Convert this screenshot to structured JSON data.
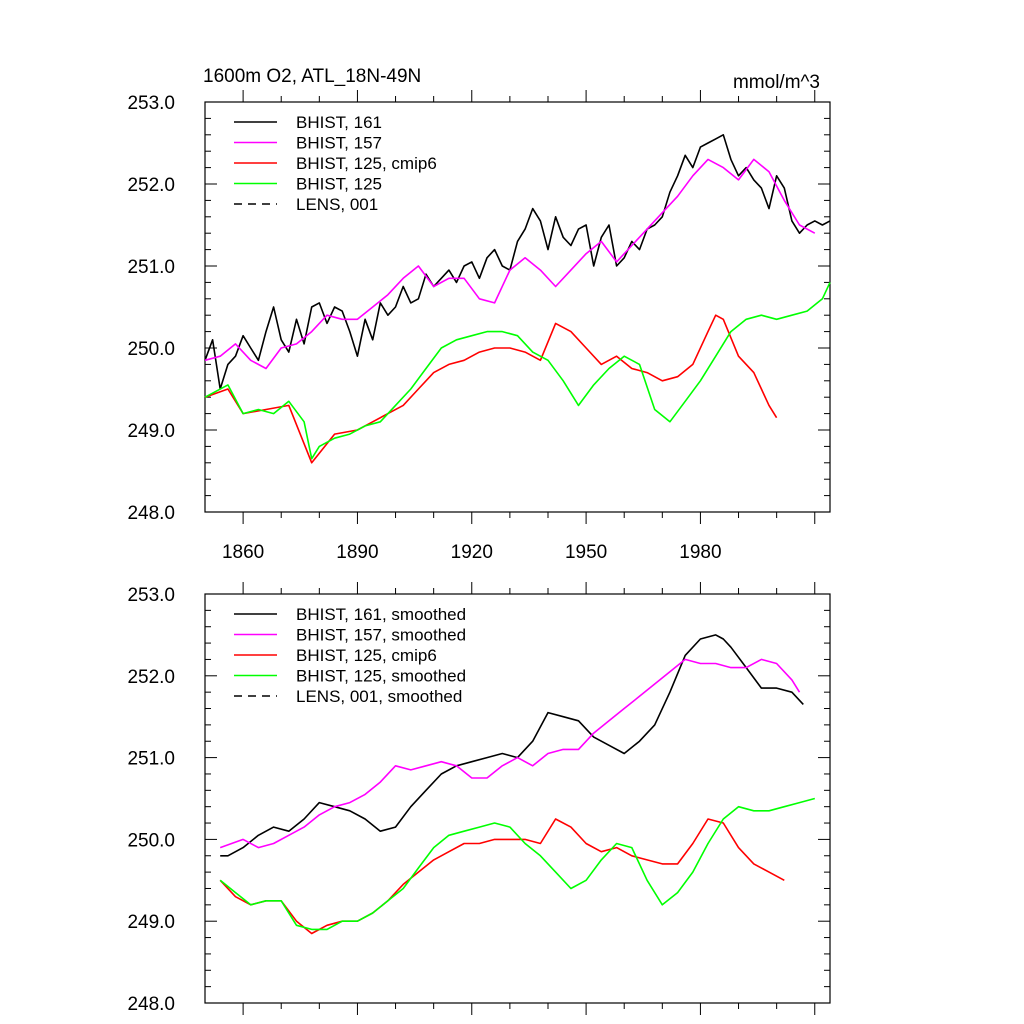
{
  "chart_data": [
    {
      "type": "line",
      "title": "1600m O2, ATL_18N-49N",
      "units": "mmol/m^3",
      "xlabel": "",
      "ylabel": "",
      "xlim": [
        1850,
        2014
      ],
      "ylim": [
        248.0,
        253.0
      ],
      "x_ticks": [
        "1860",
        "1890",
        "1920",
        "1950",
        "1980"
      ],
      "y_ticks": [
        "253.0",
        "252.0",
        "251.0",
        "250.0",
        "249.0",
        "248.0"
      ],
      "legend_position": "top-left",
      "series": [
        {
          "name": "BHIST, 161",
          "color": "#000000",
          "dash": "solid",
          "x": [
            1850,
            1852,
            1854,
            1856,
            1858,
            1860,
            1862,
            1864,
            1866,
            1868,
            1870,
            1872,
            1874,
            1876,
            1878,
            1880,
            1882,
            1884,
            1886,
            1888,
            1890,
            1892,
            1894,
            1896,
            1898,
            1900,
            1902,
            1904,
            1906,
            1908,
            1910,
            1912,
            1914,
            1916,
            1918,
            1920,
            1922,
            1924,
            1926,
            1928,
            1930,
            1932,
            1934,
            1936,
            1938,
            1940,
            1942,
            1944,
            1946,
            1948,
            1950,
            1952,
            1954,
            1956,
            1958,
            1960,
            1962,
            1964,
            1966,
            1968,
            1970,
            1972,
            1974,
            1976,
            1978,
            1980,
            1982,
            1984,
            1986,
            1988,
            1990,
            1992,
            1994,
            1996,
            1998,
            2000,
            2002,
            2004,
            2006,
            2008,
            2010,
            2012,
            2014
          ],
          "y": [
            249.85,
            250.1,
            249.5,
            249.8,
            249.9,
            250.15,
            250.0,
            249.85,
            250.2,
            250.5,
            250.1,
            249.95,
            250.35,
            250.05,
            250.5,
            250.55,
            250.3,
            250.5,
            250.45,
            250.2,
            249.9,
            250.35,
            250.1,
            250.55,
            250.4,
            250.5,
            250.75,
            250.55,
            250.6,
            250.9,
            250.75,
            250.85,
            250.95,
            250.8,
            251.0,
            251.05,
            250.85,
            251.1,
            251.2,
            251.0,
            250.95,
            251.3,
            251.45,
            251.7,
            251.55,
            251.2,
            251.6,
            251.35,
            251.25,
            251.45,
            251.5,
            251.0,
            251.35,
            251.5,
            251.0,
            251.1,
            251.3,
            251.2,
            251.45,
            251.5,
            251.6,
            251.9,
            252.1,
            252.35,
            252.2,
            252.45,
            252.5,
            252.55,
            252.6,
            252.3,
            252.1,
            252.2,
            252.05,
            251.95,
            251.7,
            252.1,
            251.95,
            251.55,
            251.4,
            251.5,
            251.55,
            251.5,
            251.55
          ]
        },
        {
          "name": "BHIST, 157",
          "color": "#ff00ff",
          "dash": "solid",
          "x": [
            1850,
            1854,
            1858,
            1862,
            1866,
            1870,
            1874,
            1878,
            1882,
            1886,
            1890,
            1894,
            1898,
            1902,
            1906,
            1910,
            1914,
            1918,
            1922,
            1926,
            1930,
            1934,
            1938,
            1942,
            1946,
            1950,
            1954,
            1958,
            1962,
            1966,
            1970,
            1974,
            1978,
            1982,
            1986,
            1990,
            1994,
            1998,
            2002,
            2006,
            2010
          ],
          "y": [
            249.85,
            249.9,
            250.05,
            249.85,
            249.75,
            250.0,
            250.05,
            250.2,
            250.4,
            250.35,
            250.35,
            250.5,
            250.65,
            250.85,
            251.0,
            250.75,
            250.85,
            250.85,
            250.6,
            250.55,
            250.95,
            251.1,
            250.95,
            250.75,
            250.95,
            251.15,
            251.3,
            251.05,
            251.25,
            251.45,
            251.65,
            251.85,
            252.1,
            252.3,
            252.2,
            252.05,
            252.3,
            252.15,
            251.8,
            251.5,
            251.4
          ]
        },
        {
          "name": "BHIST, 125, cmip6",
          "color": "#ff0000",
          "dash": "solid",
          "x": [
            1850,
            1856,
            1860,
            1866,
            1872,
            1878,
            1884,
            1890,
            1894,
            1898,
            1902,
            1906,
            1910,
            1914,
            1918,
            1922,
            1926,
            1930,
            1934,
            1938,
            1942,
            1946,
            1950,
            1954,
            1958,
            1962,
            1966,
            1970,
            1974,
            1978,
            1982,
            1984,
            1986,
            1990,
            1994,
            1998,
            2000
          ],
          "y": [
            249.4,
            249.5,
            249.2,
            249.25,
            249.3,
            248.6,
            248.95,
            249.0,
            249.1,
            249.2,
            249.3,
            249.5,
            249.7,
            249.8,
            249.85,
            249.95,
            250.0,
            250.0,
            249.95,
            249.85,
            250.3,
            250.2,
            250.0,
            249.8,
            249.9,
            249.75,
            249.7,
            249.6,
            249.65,
            249.8,
            250.2,
            250.4,
            250.35,
            249.9,
            249.7,
            249.3,
            249.15
          ]
        },
        {
          "name": "BHIST, 125",
          "color": "#00ff00",
          "dash": "solid",
          "x": [
            1850,
            1856,
            1860,
            1864,
            1868,
            1872,
            1876,
            1878,
            1880,
            1884,
            1888,
            1892,
            1896,
            1900,
            1904,
            1908,
            1912,
            1916,
            1920,
            1924,
            1928,
            1932,
            1936,
            1940,
            1944,
            1948,
            1952,
            1956,
            1960,
            1964,
            1968,
            1972,
            1976,
            1980,
            1984,
            1988,
            1992,
            1996,
            2000,
            2004,
            2008,
            2012,
            2014
          ],
          "y": [
            249.4,
            249.55,
            249.2,
            249.25,
            249.2,
            249.35,
            249.1,
            248.65,
            248.8,
            248.9,
            248.95,
            249.05,
            249.1,
            249.3,
            249.5,
            249.75,
            250.0,
            250.1,
            250.15,
            250.2,
            250.2,
            250.15,
            249.95,
            249.85,
            249.6,
            249.3,
            249.55,
            249.75,
            249.9,
            249.8,
            249.25,
            249.1,
            249.35,
            249.6,
            249.9,
            250.2,
            250.35,
            250.4,
            250.35,
            250.4,
            250.45,
            250.6,
            250.8
          ]
        },
        {
          "name": "LENS, 001",
          "color": "#000000",
          "dash": "dashed",
          "x": [],
          "y": []
        }
      ]
    },
    {
      "type": "line",
      "title": "",
      "xlabel": "",
      "ylabel": "",
      "xlim": [
        1850,
        2014
      ],
      "ylim": [
        248.0,
        253.0
      ],
      "y_ticks": [
        "253.0",
        "252.0",
        "251.0",
        "250.0",
        "249.0",
        "248.0"
      ],
      "legend_position": "top-left",
      "series": [
        {
          "name": "BHIST, 161, smoothed",
          "color": "#000000",
          "dash": "solid",
          "x": [
            1854,
            1856,
            1860,
            1864,
            1868,
            1872,
            1876,
            1880,
            1884,
            1888,
            1892,
            1896,
            1900,
            1904,
            1908,
            1912,
            1916,
            1920,
            1924,
            1928,
            1932,
            1936,
            1940,
            1944,
            1948,
            1952,
            1956,
            1960,
            1964,
            1968,
            1972,
            1976,
            1980,
            1984,
            1986,
            1988,
            1992,
            1996,
            2000,
            2004,
            2007
          ],
          "y": [
            249.8,
            249.8,
            249.9,
            250.05,
            250.15,
            250.1,
            250.25,
            250.45,
            250.4,
            250.35,
            250.25,
            250.1,
            250.15,
            250.4,
            250.6,
            250.8,
            250.9,
            250.95,
            251.0,
            251.05,
            251.0,
            251.2,
            251.55,
            251.5,
            251.45,
            251.25,
            251.15,
            251.05,
            251.2,
            251.4,
            251.8,
            252.25,
            252.45,
            252.5,
            252.45,
            252.35,
            252.1,
            251.85,
            251.85,
            251.8,
            251.65
          ]
        },
        {
          "name": "BHIST, 157, smoothed",
          "color": "#ff00ff",
          "dash": "solid",
          "x": [
            1854,
            1860,
            1864,
            1868,
            1872,
            1876,
            1880,
            1884,
            1888,
            1892,
            1896,
            1900,
            1904,
            1908,
            1912,
            1916,
            1920,
            1924,
            1928,
            1932,
            1936,
            1940,
            1944,
            1948,
            1952,
            1956,
            1960,
            1964,
            1968,
            1972,
            1976,
            1980,
            1984,
            1988,
            1992,
            1996,
            2000,
            2004,
            2006
          ],
          "y": [
            249.9,
            250.0,
            249.9,
            249.95,
            250.05,
            250.15,
            250.3,
            250.4,
            250.45,
            250.55,
            250.7,
            250.9,
            250.85,
            250.9,
            250.95,
            250.9,
            250.75,
            250.75,
            250.9,
            251.0,
            250.9,
            251.05,
            251.1,
            251.1,
            251.3,
            251.45,
            251.6,
            251.75,
            251.9,
            252.05,
            252.2,
            252.15,
            252.15,
            252.1,
            252.1,
            252.2,
            252.15,
            251.95,
            251.8
          ]
        },
        {
          "name": "BHIST, 125, cmip6",
          "color": "#ff0000",
          "dash": "solid",
          "x": [
            1854,
            1858,
            1862,
            1866,
            1870,
            1874,
            1878,
            1882,
            1886,
            1890,
            1894,
            1898,
            1902,
            1906,
            1910,
            1914,
            1918,
            1922,
            1926,
            1930,
            1934,
            1938,
            1942,
            1946,
            1950,
            1954,
            1958,
            1962,
            1966,
            1970,
            1974,
            1978,
            1982,
            1986,
            1990,
            1994,
            1998,
            2002
          ],
          "y": [
            249.5,
            249.3,
            249.2,
            249.25,
            249.25,
            249.0,
            248.85,
            248.95,
            249.0,
            249.0,
            249.1,
            249.25,
            249.45,
            249.6,
            249.75,
            249.85,
            249.95,
            249.95,
            250.0,
            250.0,
            250.0,
            249.95,
            250.25,
            250.15,
            249.95,
            249.85,
            249.9,
            249.8,
            249.75,
            249.7,
            249.7,
            249.95,
            250.25,
            250.2,
            249.9,
            249.7,
            249.6,
            249.5
          ]
        },
        {
          "name": "BHIST, 125, smoothed",
          "color": "#00ff00",
          "dash": "solid",
          "x": [
            1854,
            1858,
            1862,
            1866,
            1870,
            1874,
            1878,
            1882,
            1886,
            1890,
            1894,
            1898,
            1902,
            1906,
            1910,
            1914,
            1918,
            1922,
            1926,
            1930,
            1934,
            1938,
            1942,
            1946,
            1950,
            1954,
            1958,
            1962,
            1966,
            1970,
            1974,
            1978,
            1982,
            1986,
            1990,
            1994,
            1998,
            2002,
            2006,
            2010
          ],
          "y": [
            249.5,
            249.35,
            249.2,
            249.25,
            249.25,
            248.95,
            248.9,
            248.9,
            249.0,
            249.0,
            249.1,
            249.25,
            249.4,
            249.65,
            249.9,
            250.05,
            250.1,
            250.15,
            250.2,
            250.15,
            249.95,
            249.8,
            249.6,
            249.4,
            249.5,
            249.75,
            249.95,
            249.9,
            249.5,
            249.2,
            249.35,
            249.6,
            249.95,
            250.25,
            250.4,
            250.35,
            250.35,
            250.4,
            250.45,
            250.5
          ]
        },
        {
          "name": "LENS, 001, smoothed",
          "color": "#000000",
          "dash": "dashed",
          "x": [],
          "y": []
        }
      ]
    }
  ]
}
